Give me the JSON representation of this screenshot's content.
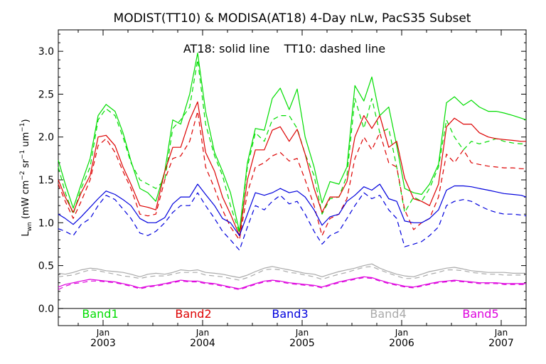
{
  "chart_data": {
    "type": "line",
    "title": "MODIST(TT10) & MODISA(AT18) 4-Day nLw, PacS35 Subset",
    "annotation": "AT18: solid line    TT10: dashed line",
    "ylabel": {
      "base": "L",
      "base_sub": "wn",
      "units_pre": " (mW cm",
      "sup1": "−2",
      "mid": " sr",
      "sup2": "−1",
      "mid2": " um",
      "sup3": "−1",
      "close": ")"
    },
    "xlabel": "",
    "xlim": [
      2002.55,
      2007.25
    ],
    "ylim": [
      -0.2,
      3.25
    ],
    "grid": false,
    "legend_position": "bottom inside plot",
    "x_ticks": [
      {
        "x": 2003.0,
        "month": "Jan",
        "year": "2003"
      },
      {
        "x": 2004.0,
        "month": "Jan",
        "year": "2004"
      },
      {
        "x": 2005.0,
        "month": "Jan",
        "year": "2005"
      },
      {
        "x": 2006.0,
        "month": "Jan",
        "year": "2006"
      },
      {
        "x": 2007.0,
        "month": "Jan",
        "year": "2007"
      }
    ],
    "y_ticks": [
      {
        "v": 0.0,
        "label": "0.0"
      },
      {
        "v": 0.5,
        "label": "0.5"
      },
      {
        "v": 1.0,
        "label": "1.0"
      },
      {
        "v": 1.5,
        "label": "1.5"
      },
      {
        "v": 2.0,
        "label": "2.0"
      },
      {
        "v": 2.5,
        "label": "2.5"
      },
      {
        "v": 3.0,
        "label": "3.0"
      }
    ],
    "x": [
      2002.55,
      2002.62,
      2002.7,
      2002.78,
      2002.87,
      2002.95,
      2003.03,
      2003.12,
      2003.2,
      2003.28,
      2003.37,
      2003.45,
      2003.53,
      2003.62,
      2003.7,
      2003.78,
      2003.87,
      2003.95,
      2004.03,
      2004.12,
      2004.2,
      2004.28,
      2004.37,
      2004.45,
      2004.53,
      2004.62,
      2004.7,
      2004.78,
      2004.87,
      2004.95,
      2005.03,
      2005.12,
      2005.2,
      2005.28,
      2005.37,
      2005.45,
      2005.53,
      2005.62,
      2005.7,
      2005.78,
      2005.87,
      2005.95,
      2006.03,
      2006.12,
      2006.2,
      2006.28,
      2006.37,
      2006.45,
      2006.53,
      2006.62,
      2006.7,
      2006.78,
      2006.87,
      2006.95,
      2007.03,
      2007.12,
      2007.2,
      2007.25
    ],
    "series": [
      {
        "name": "Band1",
        "color": "#00dd00",
        "solid": [
          1.73,
          1.45,
          1.17,
          1.45,
          1.75,
          2.25,
          2.38,
          2.3,
          2.05,
          1.72,
          1.4,
          1.35,
          1.25,
          1.6,
          2.2,
          2.15,
          2.5,
          2.98,
          2.3,
          1.82,
          1.6,
          1.35,
          0.9,
          1.7,
          2.1,
          2.08,
          2.45,
          2.57,
          2.32,
          2.56,
          2.0,
          1.65,
          1.23,
          1.48,
          1.45,
          1.65,
          2.6,
          2.42,
          2.7,
          2.25,
          2.35,
          1.9,
          1.4,
          1.35,
          1.33,
          1.45,
          1.68,
          2.4,
          2.47,
          2.37,
          2.43,
          2.35,
          2.3,
          2.3,
          2.28,
          2.25,
          2.22,
          2.2
        ],
        "dashed": [
          1.65,
          1.35,
          1.1,
          1.4,
          1.65,
          2.2,
          2.33,
          2.25,
          2.0,
          1.7,
          1.5,
          1.45,
          1.4,
          1.5,
          2.1,
          2.2,
          2.35,
          2.9,
          2.15,
          1.78,
          1.55,
          1.2,
          0.88,
          1.65,
          2.05,
          1.95,
          2.2,
          2.25,
          2.25,
          2.1,
          1.8,
          1.55,
          1.1,
          1.28,
          1.3,
          1.55,
          2.45,
          2.1,
          2.45,
          2.05,
          2.1,
          1.65,
          1.12,
          1.3,
          1.25,
          1.4,
          1.65,
          2.2,
          2.0,
          1.85,
          1.95,
          1.92,
          1.95,
          1.98,
          1.95,
          1.93,
          1.92,
          1.92
        ]
      },
      {
        "name": "Band2",
        "color": "#dd0000",
        "solid": [
          1.5,
          1.3,
          1.12,
          1.35,
          1.55,
          2.0,
          2.02,
          1.9,
          1.65,
          1.45,
          1.2,
          1.18,
          1.15,
          1.6,
          1.88,
          1.88,
          2.2,
          2.41,
          1.82,
          1.6,
          1.3,
          1.1,
          0.85,
          1.5,
          1.85,
          1.85,
          2.08,
          2.12,
          1.95,
          2.09,
          1.8,
          1.4,
          1.12,
          1.3,
          1.3,
          1.48,
          2.0,
          2.25,
          2.1,
          2.25,
          1.88,
          1.95,
          1.52,
          1.28,
          1.25,
          1.2,
          1.45,
          2.12,
          2.22,
          2.15,
          2.15,
          2.05,
          2.0,
          1.98,
          1.97,
          1.96,
          1.95,
          1.95
        ],
        "dashed": [
          1.45,
          1.25,
          1.05,
          1.25,
          1.5,
          1.9,
          1.98,
          1.82,
          1.6,
          1.4,
          1.1,
          1.08,
          1.1,
          1.5,
          1.75,
          1.78,
          1.95,
          2.3,
          1.65,
          1.4,
          1.15,
          0.95,
          0.8,
          1.35,
          1.65,
          1.7,
          1.78,
          1.82,
          1.72,
          1.75,
          1.5,
          1.2,
          0.85,
          1.05,
          1.1,
          1.28,
          1.75,
          2.0,
          1.85,
          2.05,
          1.7,
          1.65,
          1.15,
          0.92,
          1.0,
          1.05,
          1.3,
          1.8,
          1.7,
          1.85,
          1.7,
          1.68,
          1.66,
          1.65,
          1.64,
          1.64,
          1.63,
          1.63
        ]
      },
      {
        "name": "Band3",
        "color": "#0000dd",
        "solid": [
          1.1,
          1.05,
          0.98,
          1.07,
          1.18,
          1.28,
          1.37,
          1.33,
          1.27,
          1.2,
          1.05,
          1.0,
          1.0,
          1.06,
          1.22,
          1.3,
          1.3,
          1.45,
          1.33,
          1.2,
          1.05,
          1.0,
          0.85,
          1.1,
          1.35,
          1.32,
          1.35,
          1.4,
          1.35,
          1.37,
          1.3,
          1.15,
          0.97,
          1.07,
          1.1,
          1.25,
          1.32,
          1.42,
          1.38,
          1.45,
          1.28,
          1.25,
          1.02,
          1.0,
          1.0,
          1.05,
          1.15,
          1.38,
          1.43,
          1.43,
          1.42,
          1.4,
          1.38,
          1.36,
          1.34,
          1.33,
          1.32,
          1.3
        ],
        "dashed": [
          0.93,
          0.9,
          0.85,
          0.98,
          1.05,
          1.2,
          1.32,
          1.27,
          1.16,
          1.05,
          0.88,
          0.85,
          0.9,
          1.0,
          1.12,
          1.2,
          1.2,
          1.35,
          1.2,
          1.05,
          0.9,
          0.8,
          0.68,
          0.95,
          1.2,
          1.15,
          1.25,
          1.32,
          1.22,
          1.25,
          1.1,
          0.9,
          0.75,
          0.85,
          0.9,
          1.05,
          1.2,
          1.35,
          1.28,
          1.32,
          1.15,
          1.05,
          0.72,
          0.75,
          0.78,
          0.85,
          0.95,
          1.2,
          1.25,
          1.27,
          1.25,
          1.2,
          1.15,
          1.12,
          1.1,
          1.1,
          1.09,
          1.08
        ]
      },
      {
        "name": "Band4",
        "color": "#aaaaaa",
        "solid": [
          0.41,
          0.4,
          0.42,
          0.45,
          0.47,
          0.46,
          0.44,
          0.43,
          0.42,
          0.4,
          0.37,
          0.4,
          0.41,
          0.4,
          0.42,
          0.45,
          0.44,
          0.45,
          0.42,
          0.41,
          0.4,
          0.38,
          0.36,
          0.39,
          0.43,
          0.47,
          0.49,
          0.47,
          0.45,
          0.43,
          0.41,
          0.4,
          0.37,
          0.4,
          0.43,
          0.45,
          0.47,
          0.5,
          0.52,
          0.47,
          0.43,
          0.4,
          0.38,
          0.37,
          0.4,
          0.43,
          0.45,
          0.47,
          0.48,
          0.46,
          0.44,
          0.43,
          0.42,
          0.42,
          0.42,
          0.41,
          0.41,
          0.41
        ],
        "dashed": [
          0.37,
          0.38,
          0.39,
          0.42,
          0.45,
          0.44,
          0.42,
          0.4,
          0.38,
          0.37,
          0.35,
          0.37,
          0.38,
          0.38,
          0.4,
          0.42,
          0.42,
          0.42,
          0.39,
          0.38,
          0.37,
          0.35,
          0.33,
          0.36,
          0.4,
          0.45,
          0.46,
          0.45,
          0.42,
          0.41,
          0.39,
          0.37,
          0.34,
          0.37,
          0.4,
          0.42,
          0.45,
          0.48,
          0.49,
          0.45,
          0.41,
          0.38,
          0.35,
          0.35,
          0.37,
          0.4,
          0.42,
          0.45,
          0.45,
          0.44,
          0.42,
          0.41,
          0.4,
          0.4,
          0.39,
          0.39,
          0.39,
          0.39
        ]
      },
      {
        "name": "Band5",
        "color": "#dd00dd",
        "solid": [
          0.25,
          0.28,
          0.3,
          0.32,
          0.34,
          0.33,
          0.32,
          0.31,
          0.29,
          0.27,
          0.24,
          0.26,
          0.27,
          0.29,
          0.31,
          0.33,
          0.32,
          0.32,
          0.3,
          0.29,
          0.27,
          0.25,
          0.23,
          0.26,
          0.29,
          0.32,
          0.33,
          0.32,
          0.3,
          0.29,
          0.28,
          0.27,
          0.25,
          0.28,
          0.31,
          0.33,
          0.35,
          0.37,
          0.36,
          0.33,
          0.3,
          0.28,
          0.26,
          0.25,
          0.27,
          0.29,
          0.31,
          0.32,
          0.33,
          0.32,
          0.31,
          0.3,
          0.3,
          0.3,
          0.29,
          0.29,
          0.29,
          0.29
        ],
        "dashed": [
          0.22,
          0.26,
          0.29,
          0.3,
          0.32,
          0.32,
          0.31,
          0.3,
          0.28,
          0.26,
          0.23,
          0.25,
          0.26,
          0.28,
          0.3,
          0.32,
          0.31,
          0.31,
          0.29,
          0.28,
          0.26,
          0.24,
          0.22,
          0.25,
          0.28,
          0.31,
          0.32,
          0.31,
          0.29,
          0.28,
          0.27,
          0.26,
          0.24,
          0.27,
          0.3,
          0.32,
          0.34,
          0.36,
          0.35,
          0.32,
          0.29,
          0.27,
          0.25,
          0.24,
          0.26,
          0.28,
          0.3,
          0.31,
          0.32,
          0.31,
          0.3,
          0.29,
          0.29,
          0.29,
          0.28,
          0.28,
          0.28,
          0.28
        ]
      }
    ]
  }
}
